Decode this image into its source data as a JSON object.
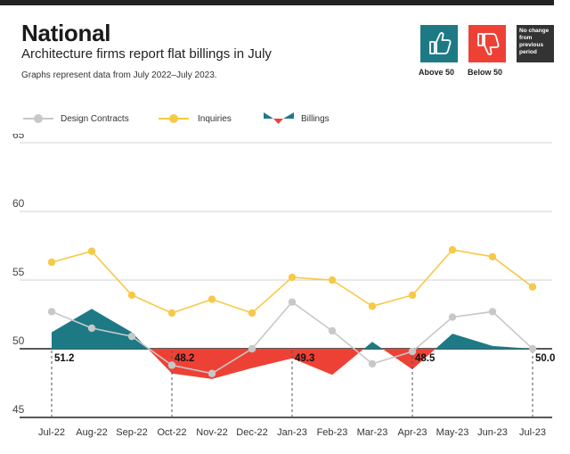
{
  "header": {
    "title": "National",
    "subtitle": "Architecture firms report flat billings in July",
    "note": "Graphs represent data from July 2022–July 2023."
  },
  "key": {
    "above_label": "Above 50",
    "below_label": "Below 50",
    "no_change_label": "No change from previous period",
    "up_color": "#1d7a85",
    "down_color": "#ee4136",
    "neutral_color": "#333333",
    "up_icon": "thumbs-up-icon",
    "down_icon": "thumbs-down-icon"
  },
  "legend": {
    "design_contracts": "Design Contracts",
    "inquiries": "Inquiries",
    "billings": "Billings"
  },
  "chart_data": {
    "type": "line",
    "title": "Architecture firms report flat billings in July",
    "categories": [
      "Jul-22",
      "Aug-22",
      "Sep-22",
      "Oct-22",
      "Nov-22",
      "Dec-22",
      "Jan-23",
      "Feb-23",
      "Mar-23",
      "Apr-23",
      "May-23",
      "Jun-23",
      "Jul-23"
    ],
    "ylim": [
      45,
      65
    ],
    "yticks": [
      45,
      50,
      55,
      60,
      65
    ],
    "baseline": 50,
    "series": [
      {
        "name": "Design Contracts",
        "color": "#c8c8c8",
        "values": [
          52.7,
          51.5,
          50.9,
          48.8,
          48.2,
          50.0,
          53.4,
          51.3,
          48.9,
          49.8,
          52.3,
          52.7,
          50.0
        ]
      },
      {
        "name": "Inquiries",
        "color": "#f7c948",
        "values": [
          56.3,
          57.1,
          53.9,
          52.6,
          53.6,
          52.6,
          55.2,
          55.0,
          53.1,
          53.9,
          57.2,
          56.7,
          54.5
        ]
      },
      {
        "name": "Billings",
        "type": "area",
        "values": [
          51.2,
          52.9,
          51.2,
          48.2,
          47.8,
          48.6,
          49.3,
          48.1,
          50.5,
          48.5,
          51.1,
          50.2,
          50.0
        ]
      }
    ],
    "annotations": [
      {
        "index": 0,
        "label": "51.2"
      },
      {
        "index": 3,
        "label": "48.2"
      },
      {
        "index": 6,
        "label": "49.3"
      },
      {
        "index": 9,
        "label": "48.5"
      },
      {
        "index": 12,
        "label": "50.0"
      }
    ]
  }
}
